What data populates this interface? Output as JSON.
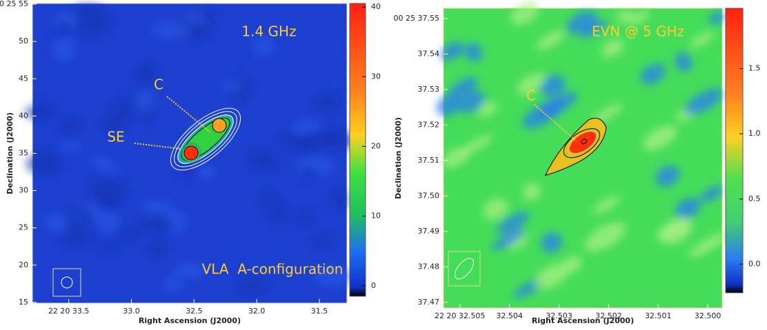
{
  "chart_data": [
    {
      "type": "map",
      "title": "1.4 GHz",
      "annotations": [
        "VLA  A-configuration",
        "C",
        "SE"
      ],
      "xlabel": "Right Ascension (J2000)",
      "ylabel": "Declination (J2000)",
      "xlim": [
        33.79,
        31.28
      ],
      "xticks": [
        {
          "value": 33.5,
          "label": "22 20 33.5"
        },
        {
          "value": 33,
          "label": "33.0"
        },
        32.5,
        {
          "value": 32,
          "label": "32.0"
        },
        31.5
      ],
      "ylim": [
        14.9,
        55.1
      ],
      "yticks": [
        {
          "value": 55,
          "label": "00 25 55"
        },
        50,
        45,
        40,
        35,
        30,
        25,
        20,
        15
      ],
      "clim": [
        -1.5,
        40.5
      ],
      "cticks": [
        0,
        10,
        20,
        30,
        40
      ]
    },
    {
      "type": "map",
      "title": "EVN @ 5 GHz",
      "annotations": [
        "C"
      ],
      "xlabel": "Right Ascension (J2000)",
      "ylabel": "Declination (J2000)",
      "xlim": [
        32.50533,
        32.49971
      ],
      "xticks": [
        {
          "value": 32.505,
          "label": "22 20 32.505"
        },
        32.504,
        32.503,
        32.502,
        32.501,
        {
          "value": 32.5,
          "label": "32.500"
        }
      ],
      "ylim": [
        37.4684,
        37.5529
      ],
      "yticks": [
        {
          "value": 37.55,
          "label": "00 25 37.55"
        },
        37.54,
        37.53,
        37.52,
        37.51,
        {
          "value": 37.5,
          "label": "37.50"
        },
        37.49,
        37.48,
        37.47
      ],
      "clim": [
        -0.22,
        1.963
      ],
      "cticks": [
        {
          "value": 1.5,
          "label": "1.5"
        },
        {
          "value": 1,
          "label": "1.0"
        },
        {
          "value": 0.5,
          "label": "0.5"
        },
        {
          "value": 0,
          "label": "0.0"
        }
      ]
    }
  ]
}
